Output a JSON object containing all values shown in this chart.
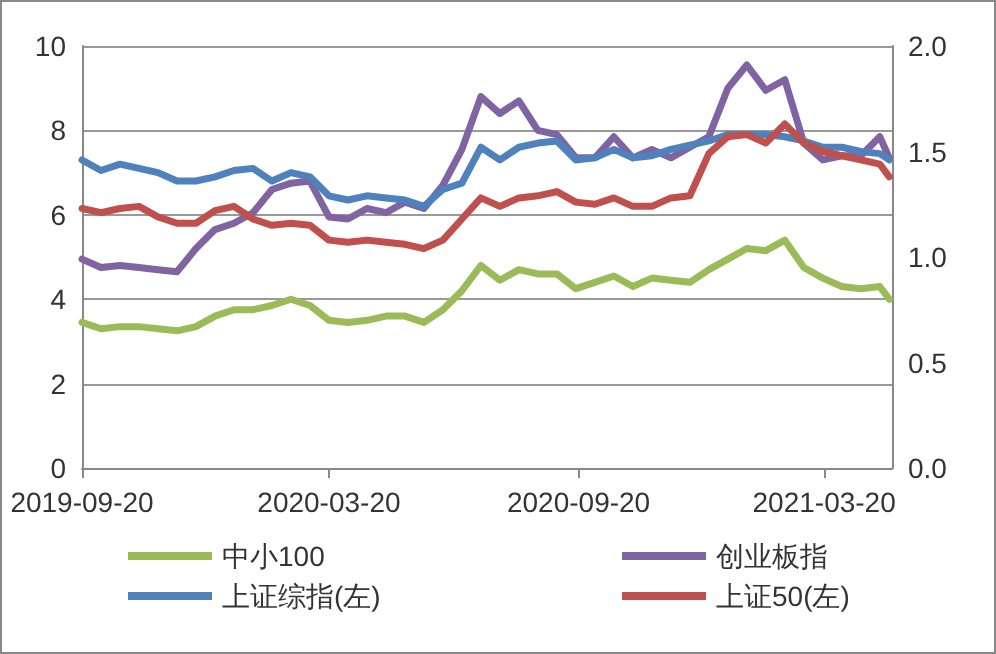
{
  "chart_data": {
    "type": "line",
    "x": [
      "2019-09-20",
      "2019-10-04",
      "2019-10-18",
      "2019-11-01",
      "2019-11-15",
      "2019-11-29",
      "2019-12-13",
      "2019-12-27",
      "2020-01-10",
      "2020-01-24",
      "2020-02-07",
      "2020-02-21",
      "2020-03-06",
      "2020-03-20",
      "2020-04-03",
      "2020-04-17",
      "2020-05-01",
      "2020-05-15",
      "2020-05-29",
      "2020-06-12",
      "2020-06-26",
      "2020-07-10",
      "2020-07-24",
      "2020-08-07",
      "2020-08-21",
      "2020-09-04",
      "2020-09-18",
      "2020-10-02",
      "2020-10-16",
      "2020-10-30",
      "2020-11-13",
      "2020-11-27",
      "2020-12-11",
      "2020-12-25",
      "2021-01-08",
      "2021-01-22",
      "2021-02-05",
      "2021-02-19",
      "2021-03-05",
      "2021-03-19",
      "2021-04-02",
      "2021-04-16",
      "2021-04-30",
      "2021-05-07"
    ],
    "series": [
      {
        "name": "中小100",
        "color": "#9bbb59",
        "axis": "y2",
        "values": [
          0.69,
          0.66,
          0.67,
          0.67,
          0.66,
          0.65,
          0.67,
          0.72,
          0.75,
          0.75,
          0.77,
          0.8,
          0.77,
          0.7,
          0.69,
          0.7,
          0.72,
          0.72,
          0.69,
          0.75,
          0.84,
          0.96,
          0.89,
          0.94,
          0.92,
          0.92,
          0.85,
          0.88,
          0.91,
          0.86,
          0.9,
          0.89,
          0.88,
          0.94,
          0.99,
          1.04,
          1.03,
          1.08,
          0.95,
          0.9,
          0.86,
          0.85,
          0.86,
          0.8
        ]
      },
      {
        "name": "创业板指",
        "color": "#8064a2",
        "axis": "y2",
        "values": [
          0.99,
          0.95,
          0.96,
          0.95,
          0.94,
          0.93,
          1.04,
          1.13,
          1.16,
          1.21,
          1.32,
          1.35,
          1.36,
          1.19,
          1.18,
          1.23,
          1.21,
          1.26,
          1.23,
          1.34,
          1.51,
          1.76,
          1.68,
          1.74,
          1.6,
          1.58,
          1.47,
          1.47,
          1.57,
          1.47,
          1.51,
          1.47,
          1.52,
          1.57,
          1.8,
          1.91,
          1.79,
          1.84,
          1.54,
          1.46,
          1.48,
          1.48,
          1.57,
          1.47
        ]
      },
      {
        "name": "上证综指(左)",
        "color": "#4f81bd",
        "values": [
          7.3,
          7.05,
          7.2,
          7.1,
          7.0,
          6.8,
          6.8,
          6.9,
          7.05,
          7.1,
          6.8,
          7.0,
          6.9,
          6.45,
          6.35,
          6.45,
          6.4,
          6.35,
          6.2,
          6.6,
          6.75,
          7.6,
          7.3,
          7.6,
          7.7,
          7.75,
          7.3,
          7.35,
          7.55,
          7.35,
          7.4,
          7.55,
          7.65,
          7.75,
          7.9,
          7.9,
          7.9,
          7.85,
          7.75,
          7.6,
          7.6,
          7.5,
          7.45,
          7.3
        ]
      },
      {
        "name": "上证50(左)",
        "color": "#c0504d",
        "values": [
          6.15,
          6.05,
          6.15,
          6.2,
          5.95,
          5.8,
          5.8,
          6.1,
          6.2,
          5.9,
          5.75,
          5.8,
          5.75,
          5.4,
          5.35,
          5.4,
          5.35,
          5.3,
          5.2,
          5.4,
          5.9,
          6.4,
          6.2,
          6.4,
          6.45,
          6.55,
          6.3,
          6.25,
          6.4,
          6.2,
          6.2,
          6.4,
          6.45,
          7.45,
          7.85,
          7.9,
          7.7,
          8.15,
          7.7,
          7.5,
          7.4,
          7.3,
          7.2,
          6.9
        ]
      }
    ],
    "xlim": [
      "2019-09-20",
      "2021-05-09"
    ],
    "xticks": [
      "2019-09-20",
      "2020-03-20",
      "2020-09-20",
      "2021-03-20"
    ],
    "ylim": [
      0,
      10
    ],
    "yticks": [
      0,
      2,
      4,
      6,
      8,
      10
    ],
    "y2lim": [
      0,
      2
    ],
    "y2ticks": [
      {
        "value": 0,
        "label": "0.0"
      },
      {
        "value": 0.5,
        "label": "0.5"
      },
      {
        "value": 1,
        "label": "1.0"
      },
      {
        "value": 1.5,
        "label": "1.5"
      },
      {
        "value": 2,
        "label": "2.0"
      }
    ],
    "grid": "y",
    "legend": "bottom",
    "marker": "none",
    "line_style": "solid"
  }
}
